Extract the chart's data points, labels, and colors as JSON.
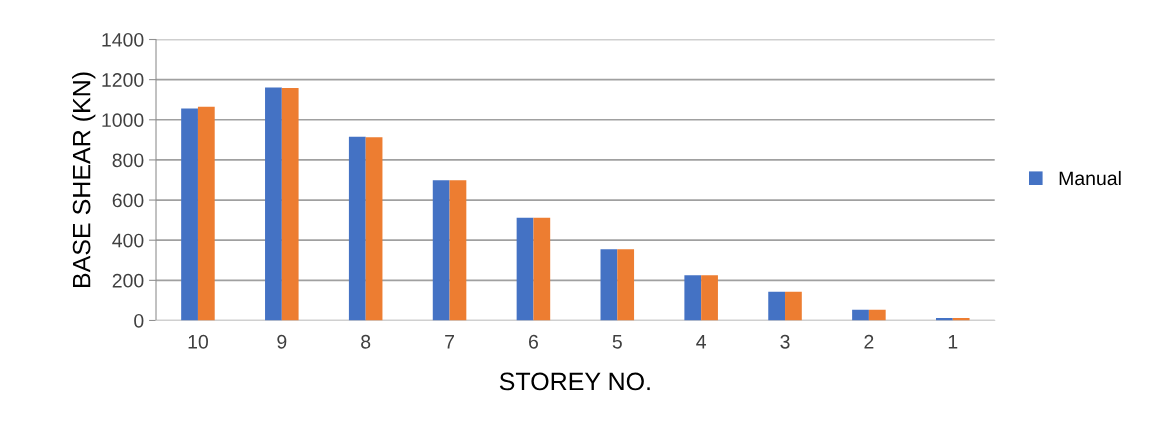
{
  "chart_data": {
    "type": "bar",
    "xlabel": "STOREY NO.",
    "ylabel": "BASE SHEAR (KN)",
    "categories": [
      "10",
      "9",
      "8",
      "7",
      "6",
      "5",
      "4",
      "3",
      "2",
      "1"
    ],
    "series": [
      {
        "name": "Manual",
        "color": "#4472c4",
        "values": [
          1056,
          1161,
          916,
          699,
          512,
          355,
          225,
          143,
          53,
          12
        ]
      },
      {
        "color": "#ed7d31",
        "values": [
          1065,
          1158,
          913,
          699,
          512,
          355,
          225,
          143,
          53,
          12
        ]
      }
    ],
    "ylim": [
      0,
      1400
    ],
    "yticks": [
      0,
      200,
      400,
      600,
      800,
      1000,
      1200,
      1400
    ],
    "grid": "y",
    "legend": "right"
  }
}
